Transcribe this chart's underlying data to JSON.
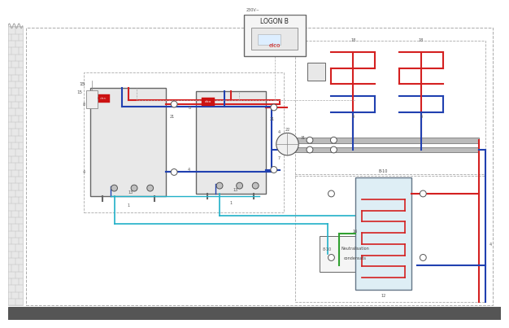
{
  "bg_color": "#ffffff",
  "pipe_red": "#d42020",
  "pipe_blue": "#2040b0",
  "pipe_cyan": "#20b0c8",
  "pipe_green": "#30a030",
  "wall_color": "#cccccc",
  "wall_fill": "#e0e0e0",
  "floor_color": "#555555",
  "logon_label": "LOGON B",
  "elco_color": "#cc1111",
  "voltage_label": "230V~",
  "neutralizer_label1": "Neutralisation",
  "neutralizer_label2": "condensats",
  "outside_sensor_label": "15"
}
